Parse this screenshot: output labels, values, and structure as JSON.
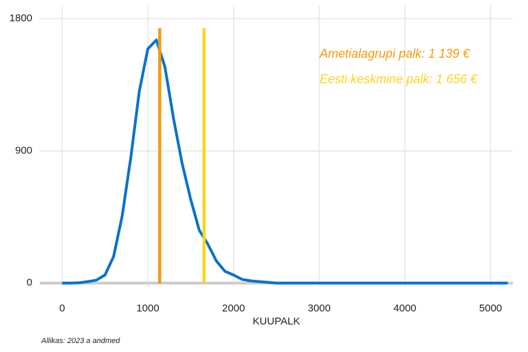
{
  "chart_data": {
    "type": "line",
    "x_label": "KUUPALK",
    "caption": "Allikas: 2023 a andmed",
    "x": [
      0,
      100,
      200,
      300,
      400,
      500,
      600,
      700,
      800,
      900,
      1000,
      1100,
      1200,
      1300,
      1400,
      1500,
      1600,
      1700,
      1800,
      1900,
      2000,
      2100,
      2200,
      2300,
      2400,
      2500,
      2600,
      2700,
      2800,
      2900,
      3000,
      3100,
      3200,
      3300,
      3400,
      3500,
      3600,
      3700,
      3800,
      3900,
      4000,
      4100,
      4200,
      4300,
      4400,
      4500,
      4600,
      4700,
      4800,
      4900,
      5000,
      5100,
      5200
    ],
    "series": [
      {
        "color": "#0a72c9",
        "values": [
          0,
          0,
          2,
          10,
          20,
          55,
          180,
          455,
          850,
          1305,
          1595,
          1655,
          1470,
          1120,
          815,
          570,
          360,
          265,
          150,
          80,
          55,
          25,
          15,
          10,
          5,
          0,
          0,
          0,
          0,
          0,
          0,
          0,
          0,
          0,
          0,
          0,
          0,
          0,
          0,
          0,
          0,
          0,
          0,
          0,
          0,
          0,
          0,
          0,
          0,
          0,
          0,
          0,
          0
        ]
      }
    ],
    "vlines": [
      {
        "value": 1139,
        "color": "#f59b0c",
        "label": "Ametialagrupi palk: 1 139 €"
      },
      {
        "value": 1656,
        "color": "#ffd21f",
        "label": "Eesti keskmine palk: 1 656 €"
      }
    ],
    "xlim": [
      -260,
      5260
    ],
    "ylim": [
      -20,
      1890
    ],
    "xticks": [
      0,
      1000,
      2000,
      3000,
      4000,
      5000
    ],
    "yticks": [
      0,
      900,
      1800
    ],
    "grid": true
  }
}
